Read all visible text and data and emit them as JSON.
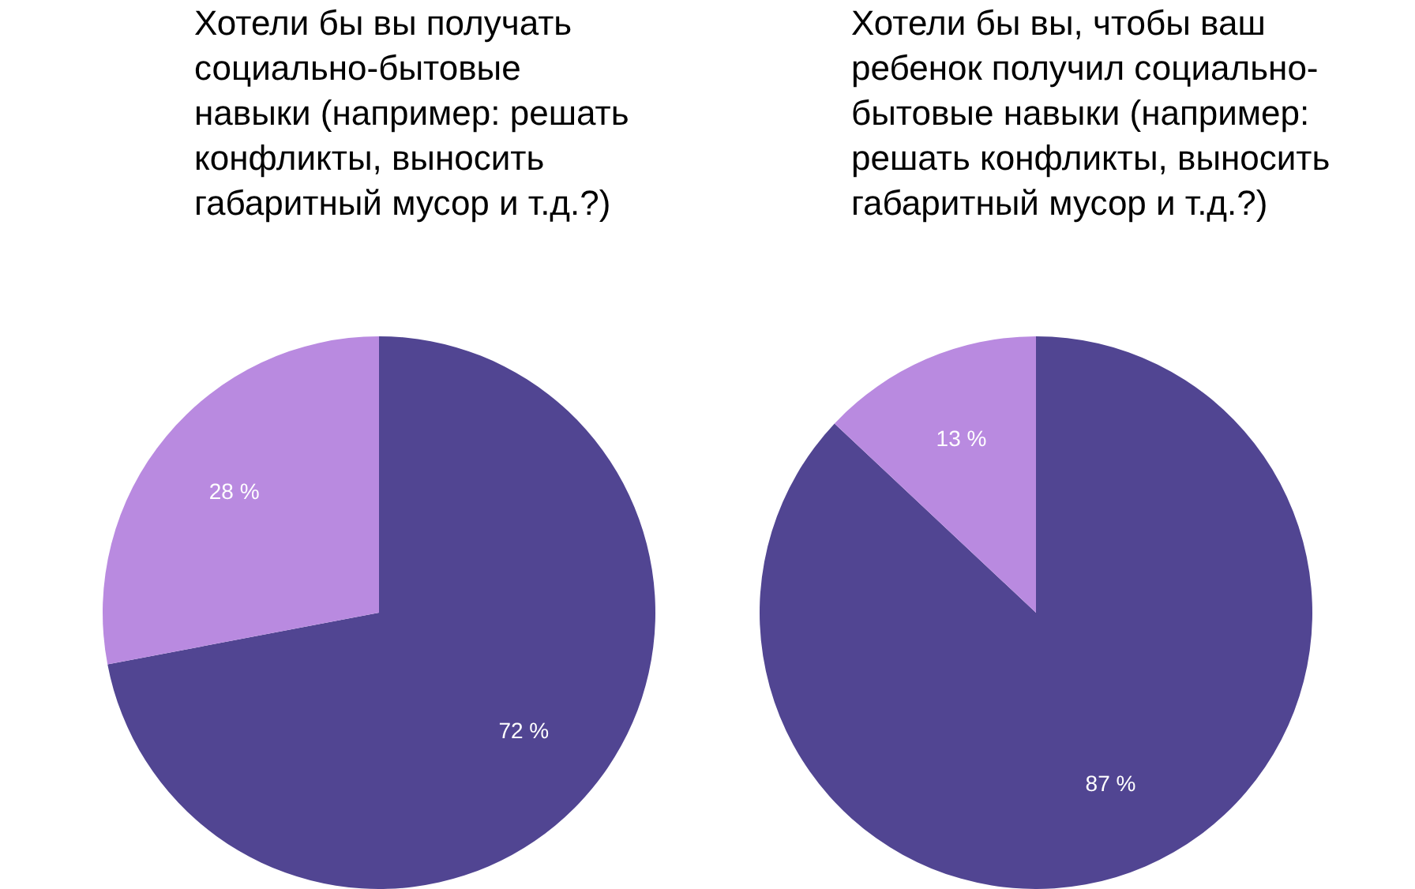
{
  "chart_data": [
    {
      "type": "pie",
      "title": "Хотели бы вы получать\nсоциально-бытовые\nнавыки (например: решать\nконфликты, выносить\nгабаритный мусор и т.д.?)",
      "categories": [
        null,
        null
      ],
      "values": [
        72,
        28
      ],
      "colors": [
        "#514592",
        "#b98ae0"
      ],
      "value_labels": [
        "72 %",
        "28 %"
      ]
    },
    {
      "type": "pie",
      "title": "Хотели бы вы, чтобы ваш\nребенок получил социально-\nбытовые навыки (например:\nрешать конфликты, выносить\nгабаритный мусор и т.д.?)",
      "categories": [
        null,
        null
      ],
      "values": [
        87,
        13
      ],
      "colors": [
        "#514592",
        "#b98ae0"
      ],
      "value_labels": [
        "87 %",
        "13 %"
      ]
    }
  ]
}
